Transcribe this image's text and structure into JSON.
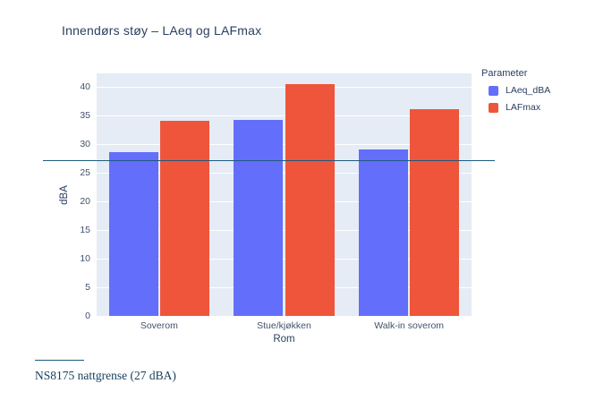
{
  "title": "Innendørs støy – LAeq og LAFmax",
  "legend": {
    "title": "Parameter",
    "items": [
      {
        "label": "LAeq_dBA",
        "color": "#636EFA"
      },
      {
        "label": "LAFmax",
        "color": "#EF553B"
      }
    ]
  },
  "footnote": {
    "text": "NS8175 nattgrense (27 dBA)"
  },
  "chart_data": {
    "type": "bar",
    "title": "Innendørs støy – LAeq og LAFmax",
    "categories": [
      "Soverom",
      "Stue/kjøkken",
      "Walk-in soverom"
    ],
    "series": [
      {
        "name": "LAeq_dBA",
        "color": "#636EFA",
        "values": [
          28.5,
          34.2,
          29.1
        ]
      },
      {
        "name": "LAFmax",
        "color": "#EF553B",
        "values": [
          34.0,
          40.4,
          36.0
        ]
      }
    ],
    "xlabel": "Rom",
    "ylabel": "dBA",
    "ylim": [
      0,
      42.3
    ],
    "yticks": [
      0,
      5,
      10,
      15,
      20,
      25,
      30,
      35,
      40
    ],
    "grid": true,
    "plot_bgcolor": "#E5ECF6",
    "legend_position": "right",
    "reference_line": {
      "value": 27,
      "label": "NS8175 nattgrense (27 dBA)",
      "color": "#1C5A7E"
    }
  }
}
